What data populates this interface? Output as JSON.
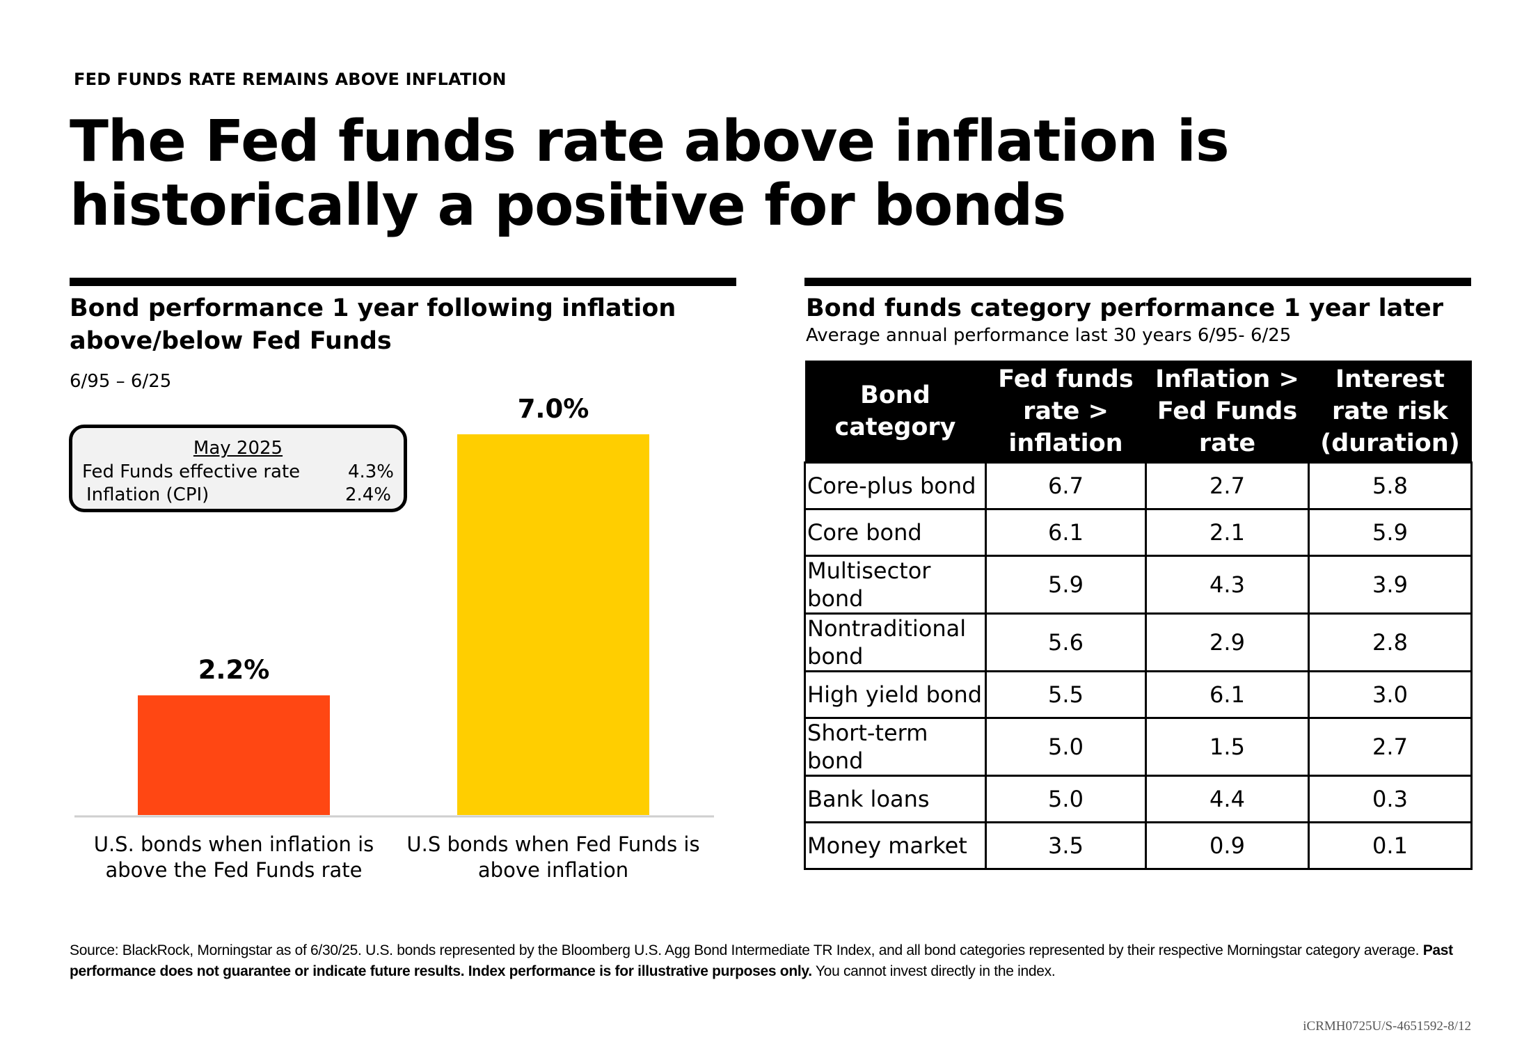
{
  "header": {
    "eyebrow": "FED FUNDS RATE REMAINS ABOVE INFLATION",
    "headline_line1": "The Fed funds rate above inflation is",
    "headline_line2": "historically a positive for bonds"
  },
  "left_panel": {
    "title_line1": "Bond performance 1 year following inflation",
    "title_line2": "above/below Fed Funds",
    "period": "6/95 – 6/25",
    "info_box": {
      "heading": "May 2025",
      "rows": [
        {
          "label": "Fed Funds effective rate",
          "value": "4.3%"
        },
        {
          "label": "Inflation (CPI)",
          "value": "2.4%"
        }
      ]
    }
  },
  "chart_data": {
    "type": "bar",
    "categories": [
      "U.S. bonds when inflation is above the Fed Funds rate",
      "U.S bonds when Fed Funds is above inflation"
    ],
    "category_lines": [
      [
        "U.S. bonds when inflation is",
        "above the Fed Funds rate"
      ],
      [
        "U.S bonds when Fed Funds is",
        "above inflation"
      ]
    ],
    "values": [
      2.2,
      7.0
    ],
    "data_labels": [
      "2.2%",
      "7.0%"
    ],
    "colors": [
      "#ff4713",
      "#ffce00"
    ],
    "ylim": [
      0,
      7.0
    ],
    "grid": false
  },
  "right_panel": {
    "title": "Bond funds category performance 1 year later",
    "subtitle": "Average annual performance last 30 years 6/95- 6/25",
    "table": {
      "headers": [
        [
          "Bond",
          "category"
        ],
        [
          "Fed funds",
          "rate >",
          "inflation"
        ],
        [
          "Inflation >",
          "Fed Funds",
          "rate"
        ],
        [
          "Interest",
          "rate risk",
          "(duration)"
        ]
      ],
      "rows": [
        {
          "category": [
            "Core-plus bond"
          ],
          "fed_above": "6.7",
          "infl_above": "2.7",
          "duration": "5.8"
        },
        {
          "category": [
            "Core bond"
          ],
          "fed_above": "6.1",
          "infl_above": "2.1",
          "duration": "5.9"
        },
        {
          "category": [
            "Multisector",
            "bond"
          ],
          "fed_above": "5.9",
          "infl_above": "4.3",
          "duration": "3.9"
        },
        {
          "category": [
            "Nontraditional",
            "bond"
          ],
          "fed_above": "5.6",
          "infl_above": "2.9",
          "duration": "2.8"
        },
        {
          "category": [
            "High yield bond"
          ],
          "fed_above": "5.5",
          "infl_above": "6.1",
          "duration": "3.0"
        },
        {
          "category": [
            "Short-term",
            "bond"
          ],
          "fed_above": "5.0",
          "infl_above": "1.5",
          "duration": "2.7"
        },
        {
          "category": [
            "Bank loans"
          ],
          "fed_above": "5.0",
          "infl_above": "4.4",
          "duration": "0.3"
        },
        {
          "category": [
            "Money market"
          ],
          "fed_above": "3.5",
          "infl_above": "0.9",
          "duration": "0.1"
        }
      ]
    }
  },
  "footer": {
    "source_normal": "Source: BlackRock, Morningstar as of 6/30/25. U.S. bonds represented by the Bloomberg U.S. Agg Bond Intermediate TR Index, and all bond categories represented by their respective Morningstar category average.",
    "source_bold": "Past performance does not guarantee or indicate future results. Index performance is for illustrative purposes only.",
    "source_tail": "You cannot invest directly in the index.",
    "code": "iCRMH0725U/S-4651592-8/12"
  }
}
